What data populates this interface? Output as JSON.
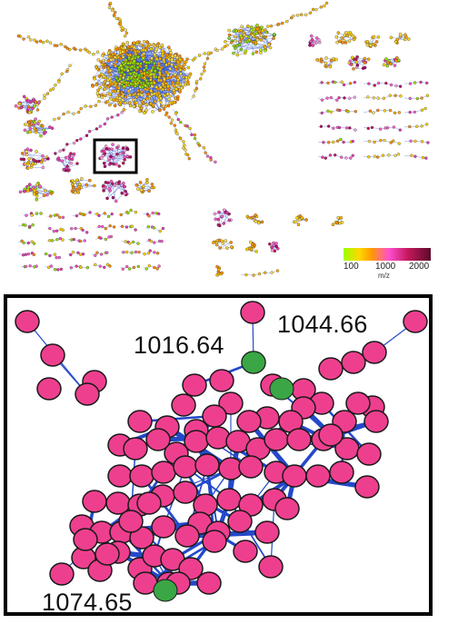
{
  "legend": {
    "tick_min": "100",
    "tick_mid": "1000",
    "tick_max": "2000",
    "unit": "m/z",
    "gradient_colors": [
      "#9dff00",
      "#ffd800",
      "#ff9a00",
      "#ff4fd0",
      "#c2185b",
      "#5b0a2a"
    ]
  },
  "highlight_labels": {
    "left_top": "1016.64",
    "right_top": "1044.66",
    "bottom_left": "1074.65"
  },
  "colors": {
    "node_pink": "#ee3f8f",
    "node_highlight": "#3aa645",
    "edge_blue": "#2449c9",
    "frame": "#000000"
  }
}
